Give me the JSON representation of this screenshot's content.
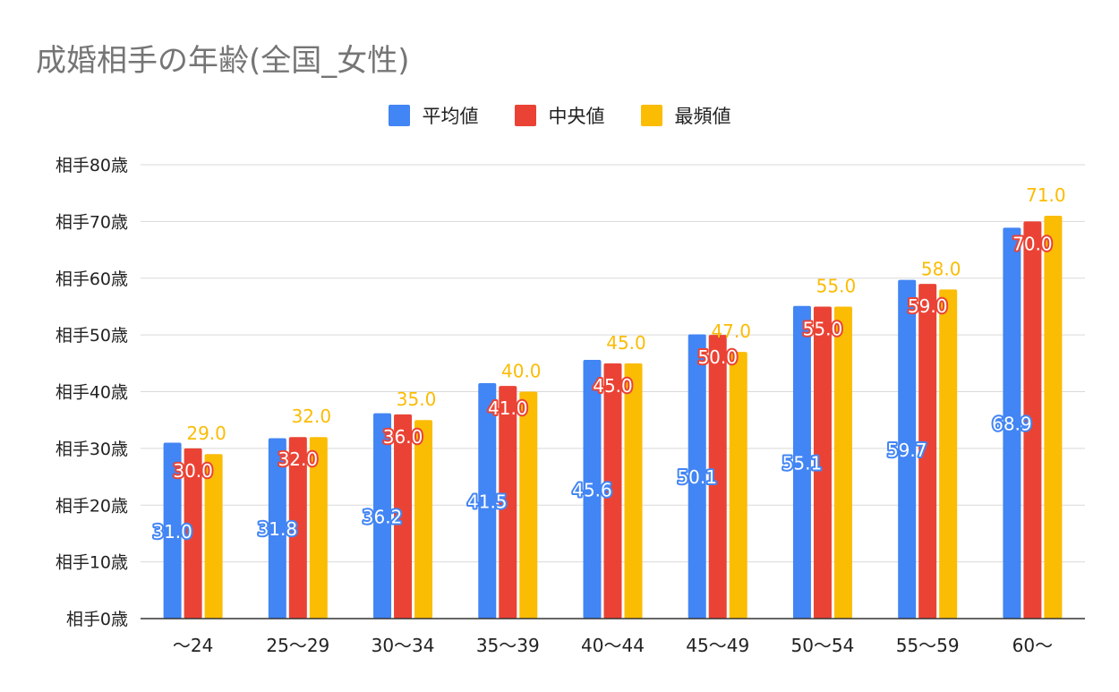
{
  "chart_data": {
    "type": "bar",
    "title": "成婚相手の年齢(全国_女性)",
    "categories": [
      "〜24",
      "25〜29",
      "30〜34",
      "35〜39",
      "40〜44",
      "45〜49",
      "50〜54",
      "55〜59",
      "60〜"
    ],
    "series": [
      {
        "name": "平均値",
        "color": "#4285F4",
        "values": [
          31.0,
          31.8,
          36.2,
          41.5,
          45.6,
          50.1,
          55.1,
          59.7,
          68.9
        ]
      },
      {
        "name": "中央値",
        "color": "#EA4335",
        "values": [
          30.0,
          32.0,
          36.0,
          41.0,
          45.0,
          50.0,
          55.0,
          59.0,
          70.0
        ]
      },
      {
        "name": "最頻値",
        "color": "#FBBC04",
        "values": [
          29.0,
          32.0,
          35.0,
          40.0,
          45.0,
          47.0,
          55.0,
          58.0,
          71.0
        ]
      }
    ],
    "y_ticks": [
      "相手0歳",
      "相手10歳",
      "相手20歳",
      "相手30歳",
      "相手40歳",
      "相手50歳",
      "相手60歳",
      "相手70歳",
      "相手80歳"
    ],
    "ylim": [
      0,
      80
    ],
    "legend_position": "top-center",
    "grid": true
  }
}
